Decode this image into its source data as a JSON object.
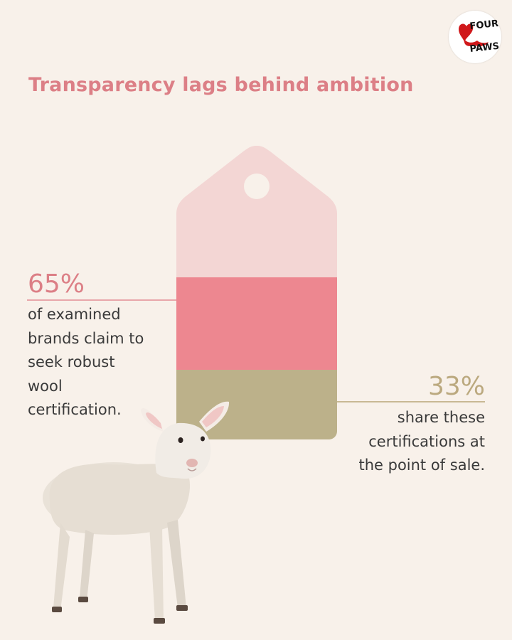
{
  "title": "Transparency lags behind ambition",
  "logo": {
    "text_line1": "FOUR",
    "text_line2": "PAWS",
    "icon": "four-paws-logo"
  },
  "stats": {
    "claim": {
      "value": 65,
      "label": "65%",
      "text": "of examined brands claim to seek robust wool certification."
    },
    "share": {
      "value": 33,
      "label": "33%",
      "text": "share these certifications at the point of sale."
    }
  },
  "colors": {
    "background": "#f8f1ea",
    "accent_pink": "#dc7f86",
    "tag_light": "#f3d6d4",
    "tag_mid": "#ed8790",
    "tag_khaki": "#bcb18a",
    "khaki_text": "#bba97f"
  },
  "image": {
    "subject": "lamb"
  }
}
